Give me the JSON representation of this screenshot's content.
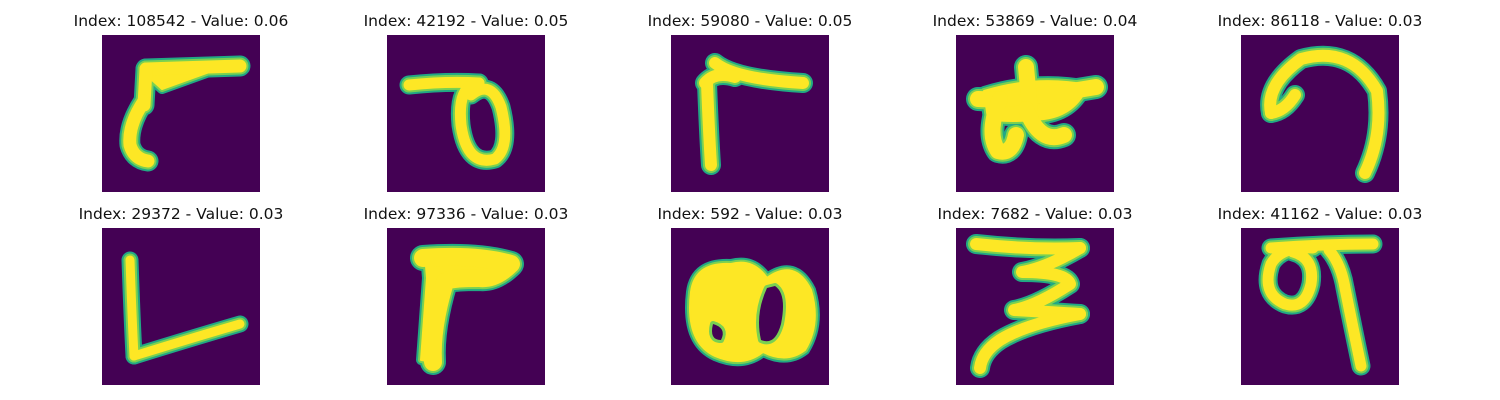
{
  "figure": {
    "colors": {
      "background": "#440154",
      "stroke_core": "#fde725",
      "stroke_edge": "#22a884",
      "stroke_mid": "#7ad151"
    },
    "cells": [
      {
        "index": "108542",
        "value": "0.06",
        "title": "Index: 108542 - Value: 0.06",
        "glyph": "stroke-shape-1"
      },
      {
        "index": "42192",
        "value": "0.05",
        "title": "Index: 42192 - Value: 0.05",
        "glyph": "stroke-shape-2"
      },
      {
        "index": "59080",
        "value": "0.05",
        "title": "Index: 59080 - Value: 0.05",
        "glyph": "stroke-shape-3"
      },
      {
        "index": "53869",
        "value": "0.04",
        "title": "Index: 53869 - Value: 0.04",
        "glyph": "stroke-shape-4"
      },
      {
        "index": "86118",
        "value": "0.03",
        "title": "Index: 86118 - Value: 0.03",
        "glyph": "stroke-shape-5"
      },
      {
        "index": "29372",
        "value": "0.03",
        "title": "Index: 29372 - Value: 0.03",
        "glyph": "stroke-shape-6"
      },
      {
        "index": "97336",
        "value": "0.03",
        "title": "Index: 97336 - Value: 0.03",
        "glyph": "stroke-shape-7"
      },
      {
        "index": "592",
        "value": "0.03",
        "title": "Index: 592 - Value: 0.03",
        "glyph": "stroke-shape-8"
      },
      {
        "index": "7682",
        "value": "0.03",
        "title": "Index: 7682 - Value: 0.03",
        "glyph": "stroke-shape-9"
      },
      {
        "index": "41162",
        "value": "0.03",
        "title": "Index: 41162 - Value: 0.03",
        "glyph": "stroke-shape-10"
      }
    ]
  }
}
